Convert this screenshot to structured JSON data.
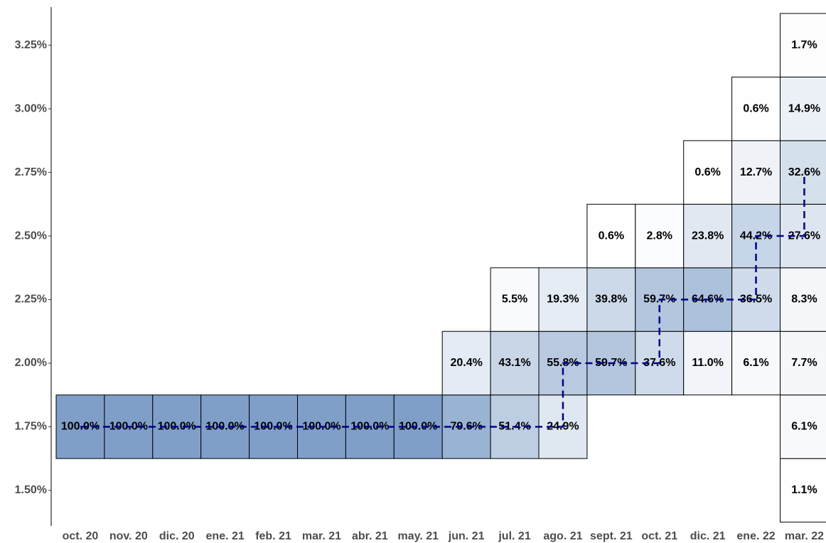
{
  "chart_data": {
    "type": "heatmap",
    "categories": [
      "oct. 20",
      "nov. 20",
      "dic. 20",
      "ene. 21",
      "feb. 21",
      "mar. 21",
      "abr. 21",
      "may. 21",
      "jun. 21",
      "jul. 21",
      "ago. 21",
      "sept. 21",
      "oct. 21",
      "dic. 21",
      "ene. 22",
      "mar. 22"
    ],
    "y": [
      1.5,
      1.75,
      2.0,
      2.25,
      2.5,
      2.75,
      3.0,
      3.25
    ],
    "z": [
      [
        null,
        null,
        null,
        null,
        null,
        null,
        null,
        null,
        null,
        null,
        null,
        null,
        null,
        null,
        null,
        1.1
      ],
      [
        100,
        100,
        100,
        100,
        100,
        100,
        100,
        100,
        79.6,
        51.4,
        24.9,
        null,
        null,
        null,
        null,
        6.1
      ],
      [
        null,
        null,
        null,
        null,
        null,
        null,
        null,
        null,
        20.4,
        43.1,
        55.8,
        59.7,
        37.6,
        11.0,
        6.1,
        7.7
      ],
      [
        null,
        null,
        null,
        null,
        null,
        null,
        null,
        null,
        null,
        5.5,
        19.3,
        39.8,
        59.7,
        64.6,
        36.5,
        8.3
      ],
      [
        null,
        null,
        null,
        null,
        null,
        null,
        null,
        null,
        null,
        null,
        null,
        0.6,
        2.8,
        23.8,
        44.2,
        27.6
      ],
      [
        null,
        null,
        null,
        null,
        null,
        null,
        null,
        null,
        null,
        null,
        null,
        null,
        null,
        0.6,
        12.7,
        32.6
      ],
      [
        null,
        null,
        null,
        null,
        null,
        null,
        null,
        null,
        null,
        null,
        null,
        null,
        null,
        null,
        0.6,
        14.9
      ],
      [
        null,
        null,
        null,
        null,
        null,
        null,
        null,
        null,
        null,
        null,
        null,
        null,
        null,
        null,
        null,
        1.7
      ]
    ],
    "z_labels": [
      [
        null,
        null,
        null,
        null,
        null,
        null,
        null,
        null,
        null,
        null,
        null,
        null,
        null,
        null,
        null,
        "1.1%"
      ],
      [
        "100.0%",
        "100.0%",
        "100.0%",
        "100.0%",
        "100.0%",
        "100.0%",
        "100.0%",
        "100.0%",
        "79.6%",
        "51.4%",
        "24.9%",
        null,
        null,
        null,
        null,
        "6.1%"
      ],
      [
        null,
        null,
        null,
        null,
        null,
        null,
        null,
        null,
        "20.4%",
        "43.1%",
        "55.8%",
        "59.7%",
        "37.6%",
        "11.0%",
        "6.1%",
        "7.7%"
      ],
      [
        null,
        null,
        null,
        null,
        null,
        null,
        null,
        null,
        null,
        "5.5%",
        "19.3%",
        "39.8%",
        "59.7%",
        "64.6%",
        "36.5%",
        "8.3%"
      ],
      [
        null,
        null,
        null,
        null,
        null,
        null,
        null,
        null,
        null,
        null,
        null,
        "0.6%",
        "2.8%",
        "23.8%",
        "44.2%",
        "27.6%"
      ],
      [
        null,
        null,
        null,
        null,
        null,
        null,
        null,
        null,
        null,
        null,
        null,
        null,
        null,
        "0.6%",
        "12.7%",
        "32.6%"
      ],
      [
        null,
        null,
        null,
        null,
        null,
        null,
        null,
        null,
        null,
        null,
        null,
        null,
        null,
        null,
        "0.6%",
        "14.9%"
      ],
      [
        null,
        null,
        null,
        null,
        null,
        null,
        null,
        null,
        null,
        null,
        null,
        null,
        null,
        null,
        null,
        "1.7%"
      ]
    ],
    "color": "#7f9fc8",
    "line": {
      "values": [
        1.75,
        1.75,
        1.75,
        1.75,
        1.75,
        1.75,
        1.75,
        1.75,
        1.75,
        1.75,
        2.0,
        2.0,
        2.25,
        2.25,
        2.5,
        2.75
      ],
      "color": "#00008b",
      "dashed": true,
      "step": "hv"
    },
    "ylim": [
      1.36,
      3.4
    ],
    "yticks": [
      {
        "value": 1.5,
        "label": "1.50%"
      },
      {
        "value": 1.75,
        "label": "1.75%"
      },
      {
        "value": 2.0,
        "label": "2.00%"
      },
      {
        "value": 2.25,
        "label": "2.25%"
      },
      {
        "value": 2.5,
        "label": "2.50%"
      },
      {
        "value": 2.75,
        "label": "2.75%"
      },
      {
        "value": 3.0,
        "label": "3.00%"
      },
      {
        "value": 3.25,
        "label": "3.25%"
      }
    ]
  }
}
